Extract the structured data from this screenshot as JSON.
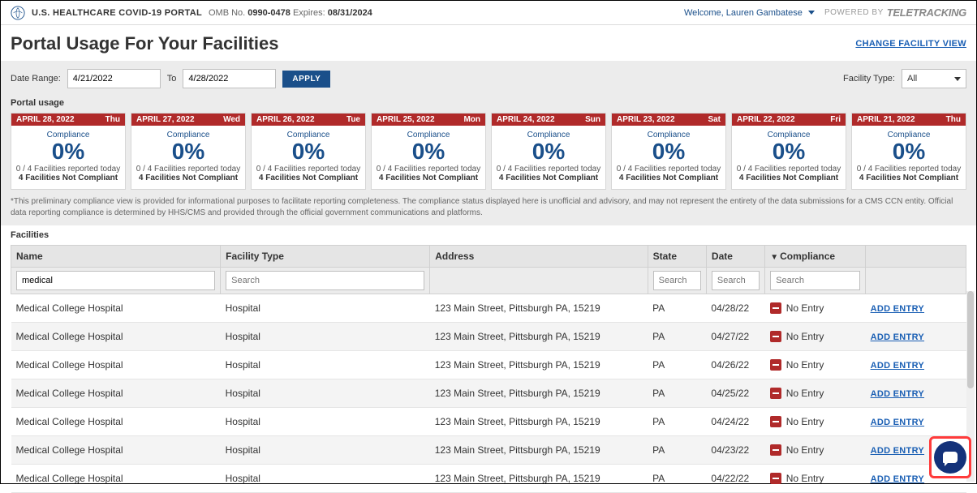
{
  "colors": {
    "accent_blue": "#1a4f8a",
    "link_blue": "#1a5fb4",
    "danger_red": "#b02a2a",
    "header_gray": "#e5e5e5",
    "panel_gray": "#ececec",
    "border_gray": "#d0d0d0",
    "chat_blue": "#14327a",
    "highlight_red": "#ff3b3b"
  },
  "topbar": {
    "portal_name": "U.S. HEALTHCARE COVID-19 PORTAL",
    "omb_prefix": "OMB No.",
    "omb_number": "0990-0478",
    "expires_prefix": "Expires:",
    "expires_date": "08/31/2024",
    "welcome_prefix": "Welcome,",
    "user_name": "Lauren Gambatese",
    "powered_by_label": "POWERED BY",
    "brand": "TeleTracking"
  },
  "page": {
    "title": "Portal Usage For Your Facilities",
    "change_view": "CHANGE FACILITY VIEW"
  },
  "controls": {
    "date_range_label": "Date Range:",
    "date_from": "4/21/2022",
    "to_label": "To",
    "date_to": "4/28/2022",
    "apply_label": "APPLY",
    "facility_type_label": "Facility Type:",
    "facility_type_value": "All"
  },
  "usage_section_label": "Portal usage",
  "cards": [
    {
      "date": "APRIL 28, 2022",
      "dow": "Thu",
      "compliance_label": "Compliance",
      "pct": "0%",
      "reported": "0 / 4 Facilities reported today",
      "noncompliant": "4 Facilities Not Compliant"
    },
    {
      "date": "APRIL 27, 2022",
      "dow": "Wed",
      "compliance_label": "Compliance",
      "pct": "0%",
      "reported": "0 / 4 Facilities reported today",
      "noncompliant": "4 Facilities Not Compliant"
    },
    {
      "date": "APRIL 26, 2022",
      "dow": "Tue",
      "compliance_label": "Compliance",
      "pct": "0%",
      "reported": "0 / 4 Facilities reported today",
      "noncompliant": "4 Facilities Not Compliant"
    },
    {
      "date": "APRIL 25, 2022",
      "dow": "Mon",
      "compliance_label": "Compliance",
      "pct": "0%",
      "reported": "0 / 4 Facilities reported today",
      "noncompliant": "4 Facilities Not Compliant"
    },
    {
      "date": "APRIL 24, 2022",
      "dow": "Sun",
      "compliance_label": "Compliance",
      "pct": "0%",
      "reported": "0 / 4 Facilities reported today",
      "noncompliant": "4 Facilities Not Compliant"
    },
    {
      "date": "APRIL 23, 2022",
      "dow": "Sat",
      "compliance_label": "Compliance",
      "pct": "0%",
      "reported": "0 / 4 Facilities reported today",
      "noncompliant": "4 Facilities Not Compliant"
    },
    {
      "date": "APRIL 22, 2022",
      "dow": "Fri",
      "compliance_label": "Compliance",
      "pct": "0%",
      "reported": "0 / 4 Facilities reported today",
      "noncompliant": "4 Facilities Not Compliant"
    },
    {
      "date": "APRIL 21, 2022",
      "dow": "Thu",
      "compliance_label": "Compliance",
      "pct": "0%",
      "reported": "0 / 4 Facilities reported today",
      "noncompliant": "4 Facilities Not Compliant"
    }
  ],
  "disclaimer": "*This preliminary compliance view is provided for informational purposes to facilitate reporting completeness. The compliance status displayed here is unofficial and advisory, and may not represent the entirety of the data submissions for a CMS CCN entity. Official data reporting compliance is determined by HHS/CMS and provided through the official government communications and platforms.",
  "facilities_label": "Facilities",
  "table": {
    "columns": {
      "name": "Name",
      "type": "Facility Type",
      "address": "Address",
      "state": "State",
      "date": "Date",
      "compliance": "Compliance",
      "action": ""
    },
    "filters": {
      "name_value": "medical",
      "type_placeholder": "Search",
      "state_placeholder": "Search",
      "date_placeholder": "Search",
      "compliance_placeholder": "Search"
    },
    "no_entry_label": "No Entry",
    "add_entry_label": "ADD ENTRY",
    "rows": [
      {
        "name": "Medical College Hospital",
        "type": "Hospital",
        "address": "123 Main Street, Pittsburgh PA, 15219",
        "state": "PA",
        "date": "04/28/22"
      },
      {
        "name": "Medical College Hospital",
        "type": "Hospital",
        "address": "123 Main Street, Pittsburgh PA, 15219",
        "state": "PA",
        "date": "04/27/22"
      },
      {
        "name": "Medical College Hospital",
        "type": "Hospital",
        "address": "123 Main Street, Pittsburgh PA, 15219",
        "state": "PA",
        "date": "04/26/22"
      },
      {
        "name": "Medical College Hospital",
        "type": "Hospital",
        "address": "123 Main Street, Pittsburgh PA, 15219",
        "state": "PA",
        "date": "04/25/22"
      },
      {
        "name": "Medical College Hospital",
        "type": "Hospital",
        "address": "123 Main Street, Pittsburgh PA, 15219",
        "state": "PA",
        "date": "04/24/22"
      },
      {
        "name": "Medical College Hospital",
        "type": "Hospital",
        "address": "123 Main Street, Pittsburgh PA, 15219",
        "state": "PA",
        "date": "04/23/22"
      },
      {
        "name": "Medical College Hospital",
        "type": "Hospital",
        "address": "123 Main Street, Pittsburgh PA, 15219",
        "state": "PA",
        "date": "04/22/22"
      }
    ]
  }
}
